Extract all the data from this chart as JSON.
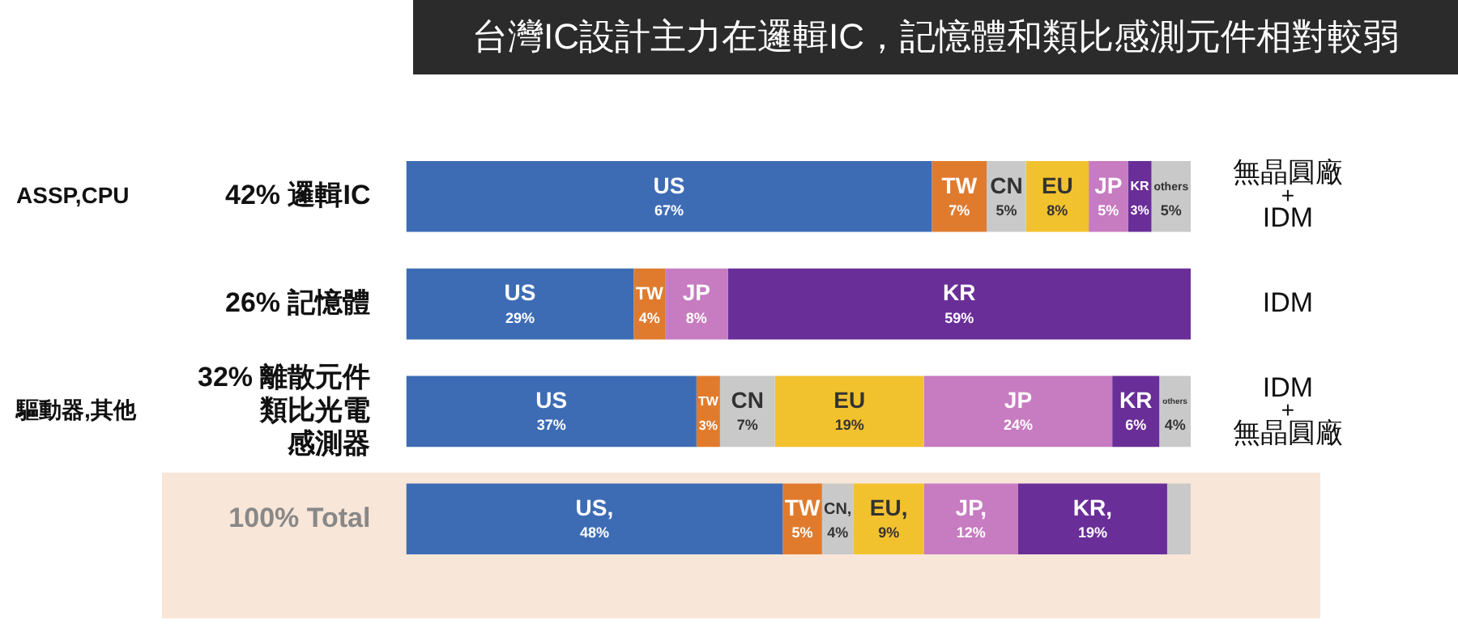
{
  "chart_data": {
    "type": "bar",
    "orientation": "horizontal",
    "stacked": true,
    "title": "台灣IC設計主力在邏輯IC，記憶體和類比感測元件相對較弱",
    "categories": [
      "42% 邏輯IC",
      "26% 記憶體",
      "32% 離散元件類比光電感測器",
      "100% Total"
    ],
    "series": [
      {
        "name": "US",
        "color": "#3d6cb5",
        "values": [
          67,
          29,
          37,
          48
        ],
        "value_labels": [
          "67%",
          "29%",
          "37%",
          "US,\n48%"
        ]
      },
      {
        "name": "TW",
        "color": "#e07b2e",
        "values": [
          7,
          4,
          3,
          5
        ],
        "value_labels": [
          "7%",
          "4%",
          "3%",
          "5%"
        ]
      },
      {
        "name": "CN",
        "color": "#c9c9c9",
        "values": [
          5,
          null,
          7,
          4
        ],
        "value_labels": [
          "5%",
          null,
          "7%",
          "CN,\n4%"
        ]
      },
      {
        "name": "EU",
        "color": "#f2c12e",
        "values": [
          8,
          null,
          19,
          9
        ],
        "value_labels": [
          "8%",
          null,
          "19%",
          "EU,\n9%"
        ]
      },
      {
        "name": "JP",
        "color": "#c77bc0",
        "values": [
          5,
          8,
          24,
          12
        ],
        "value_labels": [
          "5%",
          "8%",
          "24%",
          "JP,\n12%"
        ]
      },
      {
        "name": "KR",
        "color": "#6a2e98",
        "values": [
          3,
          59,
          6,
          19
        ],
        "value_labels": [
          "3%",
          "59%",
          "6%",
          "KR,\n19%"
        ]
      },
      {
        "name": "others",
        "color": "#c9c9c9",
        "values": [
          5,
          null,
          4,
          3
        ],
        "value_labels": [
          "5%",
          null,
          "4%",
          null
        ]
      }
    ],
    "annotations": [
      "ASSP,CPU",
      "驅動器,其他",
      "無晶圓廠\n+\nIDM",
      "IDM",
      "IDM\n+\n無晶圓廠"
    ],
    "tick_labels": "y",
    "grid": false,
    "legend": false
  }
}
